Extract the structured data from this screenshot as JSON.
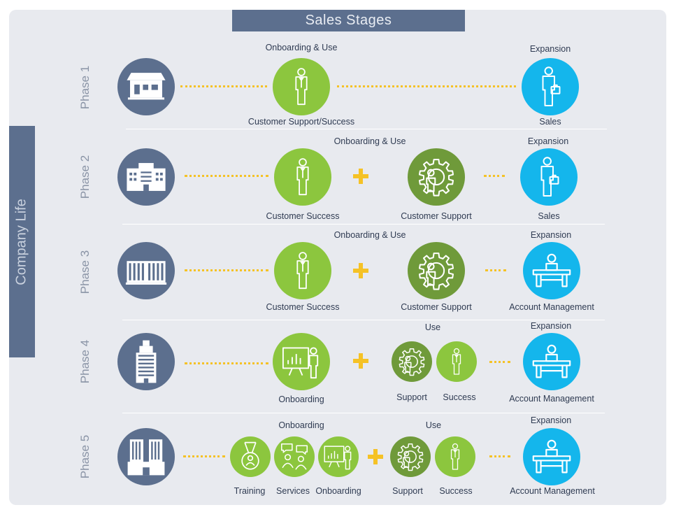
{
  "title": "Sales Stages",
  "side_label": "Company Life",
  "phases": [
    {
      "label": "Phase 1",
      "headers": [
        {
          "text": "Onboarding & Use"
        },
        {
          "text": "Expansion"
        }
      ],
      "labels": [
        {
          "text": "Customer Support/Success"
        },
        {
          "text": "Sales"
        }
      ]
    },
    {
      "label": "Phase 2",
      "headers": [
        {
          "text": "Onboarding & Use"
        },
        {
          "text": "Expansion"
        }
      ],
      "labels": [
        {
          "text": "Customer Success"
        },
        {
          "text": "Customer Support"
        },
        {
          "text": "Sales"
        }
      ]
    },
    {
      "label": "Phase 3",
      "headers": [
        {
          "text": "Onboarding & Use"
        },
        {
          "text": "Expansion"
        }
      ],
      "labels": [
        {
          "text": "Customer Success"
        },
        {
          "text": "Customer Support"
        },
        {
          "text": "Account Management"
        }
      ]
    },
    {
      "label": "Phase 4",
      "headers": [
        {
          "text": "Use"
        },
        {
          "text": "Expansion"
        }
      ],
      "labels": [
        {
          "text": "Onboarding"
        },
        {
          "text": "Support"
        },
        {
          "text": "Success"
        },
        {
          "text": "Account Management"
        }
      ]
    },
    {
      "label": "Phase 5",
      "headers": [
        {
          "text": "Onboarding"
        },
        {
          "text": "Use"
        },
        {
          "text": "Expansion"
        }
      ],
      "labels": [
        {
          "text": "Training"
        },
        {
          "text": "Services"
        },
        {
          "text": "Onboarding"
        },
        {
          "text": "Support"
        },
        {
          "text": "Success"
        },
        {
          "text": "Account Management"
        }
      ]
    }
  ],
  "colors": {
    "panel": "#e8eaef",
    "header_bar": "#5c6f8e",
    "company_circle": "#5c6f8e",
    "onboarding_green": "#8cc63e",
    "support_green": "#6f9a3a",
    "expansion_cyan": "#14b6ec",
    "connector_yellow": "#f5c226"
  },
  "icons": [
    "house-icon",
    "office-building-icon",
    "wide-building-icon",
    "skyscraper-icon",
    "twin-towers-icon",
    "person-icon",
    "gear-person-icon",
    "person-briefcase-icon",
    "person-desk-icon",
    "presentation-icon",
    "medal-icon",
    "chat-people-icon"
  ]
}
